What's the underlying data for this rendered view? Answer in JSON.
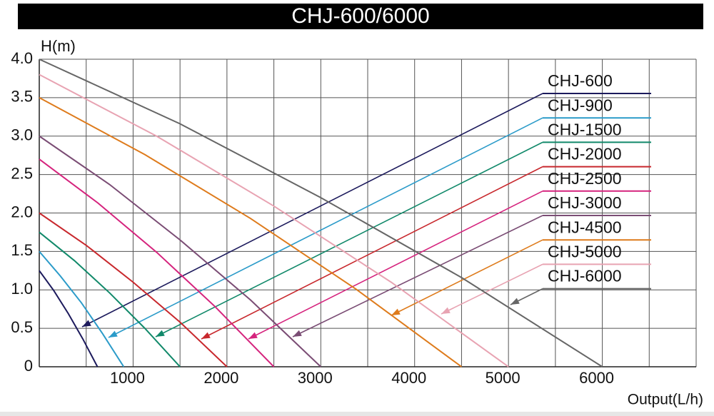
{
  "chart_data": {
    "type": "line",
    "title": "CHJ-600/6000",
    "y_label": "H(m)",
    "x_label": "Output(L/h)",
    "xlim": [
      0,
      7000
    ],
    "ylim": [
      0,
      4
    ],
    "xticks": [
      1000,
      2000,
      3000,
      4000,
      5000,
      6000
    ],
    "minor_xticks": [
      500,
      1500,
      2500,
      3500,
      4500,
      5500,
      6500,
      7000
    ],
    "yticks": [
      0,
      {
        "value": 0.5,
        "label": "0.5"
      },
      {
        "value": 1,
        "label": "1.0"
      },
      {
        "value": 1.5,
        "label": "1.5"
      },
      {
        "value": 2,
        "label": "2.0"
      },
      {
        "value": 2.5,
        "label": "2.5"
      },
      {
        "value": 3,
        "label": "3.0"
      },
      {
        "value": 3.5,
        "label": "3.5"
      },
      {
        "value": 4,
        "label": "4.0"
      }
    ],
    "grid": true,
    "series": [
      {
        "name": "CHJ-600",
        "color": "#1c1a5c",
        "x": [
          0,
          155,
          310,
          465,
          620
        ],
        "values": [
          1.25,
          0.99,
          0.69,
          0.36,
          0
        ]
      },
      {
        "name": "CHJ-900",
        "color": "#2b9bc9",
        "x": [
          0,
          225,
          450,
          675,
          900
        ],
        "values": [
          1.5,
          1.18,
          0.83,
          0.43,
          0
        ]
      },
      {
        "name": "CHJ-1500",
        "color": "#11896a",
        "x": [
          0,
          375,
          750,
          1125,
          1500
        ],
        "values": [
          1.75,
          1.38,
          0.96,
          0.5,
          0
        ]
      },
      {
        "name": "CHJ-2000",
        "color": "#c8282d",
        "x": [
          0,
          500,
          1000,
          1500,
          2000
        ],
        "values": [
          2,
          1.58,
          1.1,
          0.58,
          0
        ]
      },
      {
        "name": "CHJ-2500",
        "color": "#d5237d",
        "x": [
          0,
          625,
          1250,
          1875,
          2500
        ],
        "values": [
          2.7,
          2.13,
          1.49,
          0.78,
          0
        ]
      },
      {
        "name": "CHJ-3000",
        "color": "#7a4c74",
        "x": [
          0,
          750,
          1500,
          2250,
          3000
        ],
        "values": [
          3,
          2.37,
          1.65,
          0.87,
          0
        ]
      },
      {
        "name": "CHJ-4500",
        "color": "#de7b1c",
        "x": [
          0,
          1125,
          2250,
          3375,
          4500
        ],
        "values": [
          3.5,
          2.76,
          1.93,
          1.01,
          0
        ]
      },
      {
        "name": "CHJ-5000",
        "color": "#e8a3b2",
        "x": [
          0,
          1250,
          2500,
          3750,
          5000
        ],
        "values": [
          3.8,
          3.0,
          2.09,
          1.1,
          0
        ]
      },
      {
        "name": "CHJ-6000",
        "color": "#666666",
        "x": [
          0,
          1500,
          3000,
          4500,
          6000
        ],
        "values": [
          4,
          3.16,
          2.2,
          1.16,
          0
        ]
      }
    ]
  }
}
